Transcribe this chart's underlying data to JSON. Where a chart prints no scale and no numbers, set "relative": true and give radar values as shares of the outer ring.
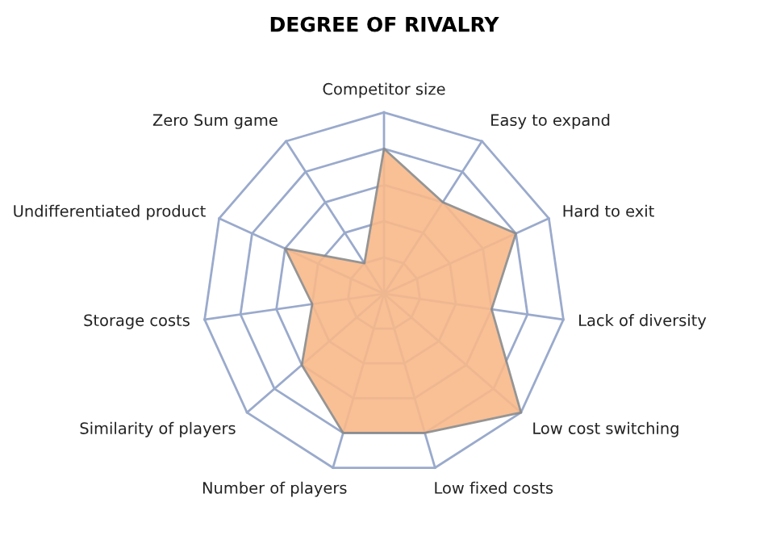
{
  "chart_data": {
    "type": "radar",
    "title": "DEGREE OF RIVALRY",
    "relative": true,
    "grid": true,
    "categories": [
      "Competitor size",
      "Easy to expand",
      "Hard to exit",
      "Lack of diversity",
      "Low cost switching",
      "Low fixed costs",
      "Number of players",
      "Similarity of players",
      "Storage costs",
      "Undifferentiated product",
      "Zero Sum game"
    ],
    "series": [
      {
        "color": "#f9b98a",
        "values": [
          0.8,
          0.6,
          0.8,
          0.6,
          1.0,
          0.8,
          0.8,
          0.6,
          0.4,
          0.6,
          0.2
        ]
      }
    ]
  }
}
